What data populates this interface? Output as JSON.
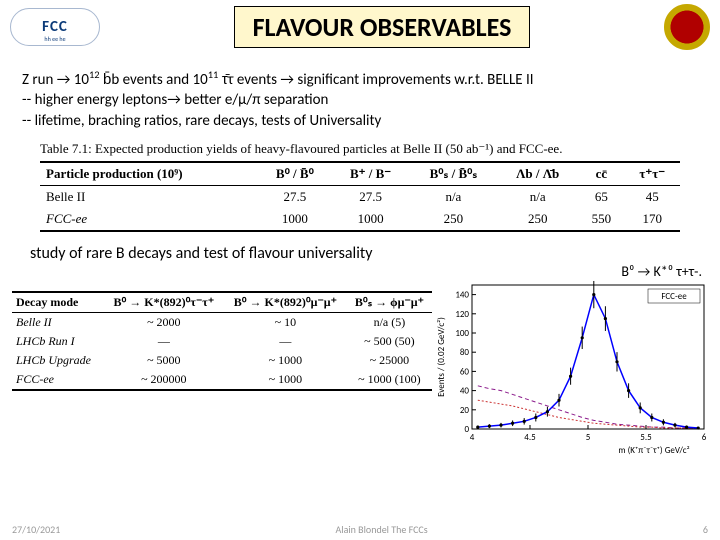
{
  "slide": {
    "title": "FLAVOUR OBSERVABLES",
    "logo_fcc_text": "FCC",
    "logo_fcc_sub": "hh ee he"
  },
  "bullets": {
    "line1_a": "Z run → 10",
    "line1_exp1": "12",
    "line1_b": "  b̄b events and 10",
    "line1_exp2": "11",
    "line1_c": "  τ̄τ events → significant improvements w.r.t. BELLE II",
    "line2": "-- higher energy leptons→ better e/μ/π separation",
    "line3": "-- lifetime, braching ratios, rare decays, tests of Universality"
  },
  "table1": {
    "caption": "Table 7.1: Expected production yields of heavy-flavoured particles at Belle II (50 ab⁻¹) and FCC-ee.",
    "headers": [
      "Particle production (10⁹)",
      "B⁰ / B̄⁰",
      "B⁺ / B⁻",
      "B⁰ₛ / B̄⁰ₛ",
      "Λb / Λ̄b",
      "cc̄",
      "τ⁺τ⁻"
    ],
    "rows": [
      [
        "Belle II",
        "27.5",
        "27.5",
        "n/a",
        "n/a",
        "65",
        "45"
      ],
      [
        "FCC-ee",
        "1000",
        "1000",
        "250",
        "250",
        "550",
        "170"
      ]
    ],
    "border_color": "#000000",
    "font": "Times New Roman"
  },
  "study_line": "study of rare B decays and test of flavour universality",
  "decay_label": "B⁰ → K*⁰ τ+τ-.",
  "table2": {
    "headers": [
      "Decay mode",
      "B⁰ → K*(892)⁰τ⁻τ⁺",
      "B⁰ → K*(892)⁰μ⁻μ⁺",
      "B⁰ₛ → ϕμ⁻μ⁺"
    ],
    "rows": [
      [
        "Belle II",
        "~ 2000",
        "~ 10",
        "n/a (5)"
      ],
      [
        "LHCb Run I",
        "—",
        "—",
        "~ 500 (50)"
      ],
      [
        "LHCb Upgrade",
        "~ 5000",
        "~ 1000",
        "~ 25000"
      ],
      [
        "FCC-ee",
        "~ 200000",
        "~ 1000",
        "~ 1000 (100)"
      ]
    ]
  },
  "chart": {
    "ylabel": "Events / (0.02 GeV/c²)",
    "xlabel": "m (K⁺π⁻τ⁻τ⁺) GeV/c²",
    "legend": "FCC-ee",
    "xlim": [
      4.0,
      6.0
    ],
    "ylim": [
      0,
      150
    ],
    "xticks": [
      4,
      4.5,
      5,
      5.5,
      6
    ],
    "yticks": [
      0,
      20,
      40,
      60,
      80,
      100,
      120,
      140
    ],
    "signal_color": "#0000ff",
    "bkg1_color": "#8b1a8b",
    "bkg2_color": "#cc3333",
    "point_color": "#000000",
    "bg": "#ffffff",
    "signal_points_x": [
      4.05,
      4.15,
      4.25,
      4.35,
      4.45,
      4.55,
      4.65,
      4.75,
      4.85,
      4.95,
      5.05,
      5.15,
      5.25,
      5.35,
      5.45,
      5.55,
      5.65,
      5.75,
      5.85,
      5.95
    ],
    "signal_points_y": [
      2,
      3,
      4,
      6,
      8,
      12,
      18,
      30,
      55,
      95,
      140,
      115,
      70,
      40,
      22,
      12,
      7,
      4,
      2,
      1
    ],
    "bkg_points_y": [
      45,
      42,
      40,
      36,
      32,
      28,
      24,
      20,
      16,
      12,
      9,
      7,
      5,
      4,
      3,
      2,
      2,
      1,
      1,
      1
    ],
    "bkg2_points_y": [
      30,
      28,
      26,
      24,
      21,
      18,
      15,
      12,
      10,
      8,
      6,
      5,
      4,
      3,
      2,
      2,
      1,
      1,
      1,
      1
    ]
  },
  "footer": {
    "date": "27/10/2021",
    "center": "Alain Blondel The FCCs",
    "page": "6"
  },
  "colors": {
    "title_bg": "#fff7cc",
    "title_border": "#000000",
    "text": "#000000",
    "footer": "#999999"
  }
}
